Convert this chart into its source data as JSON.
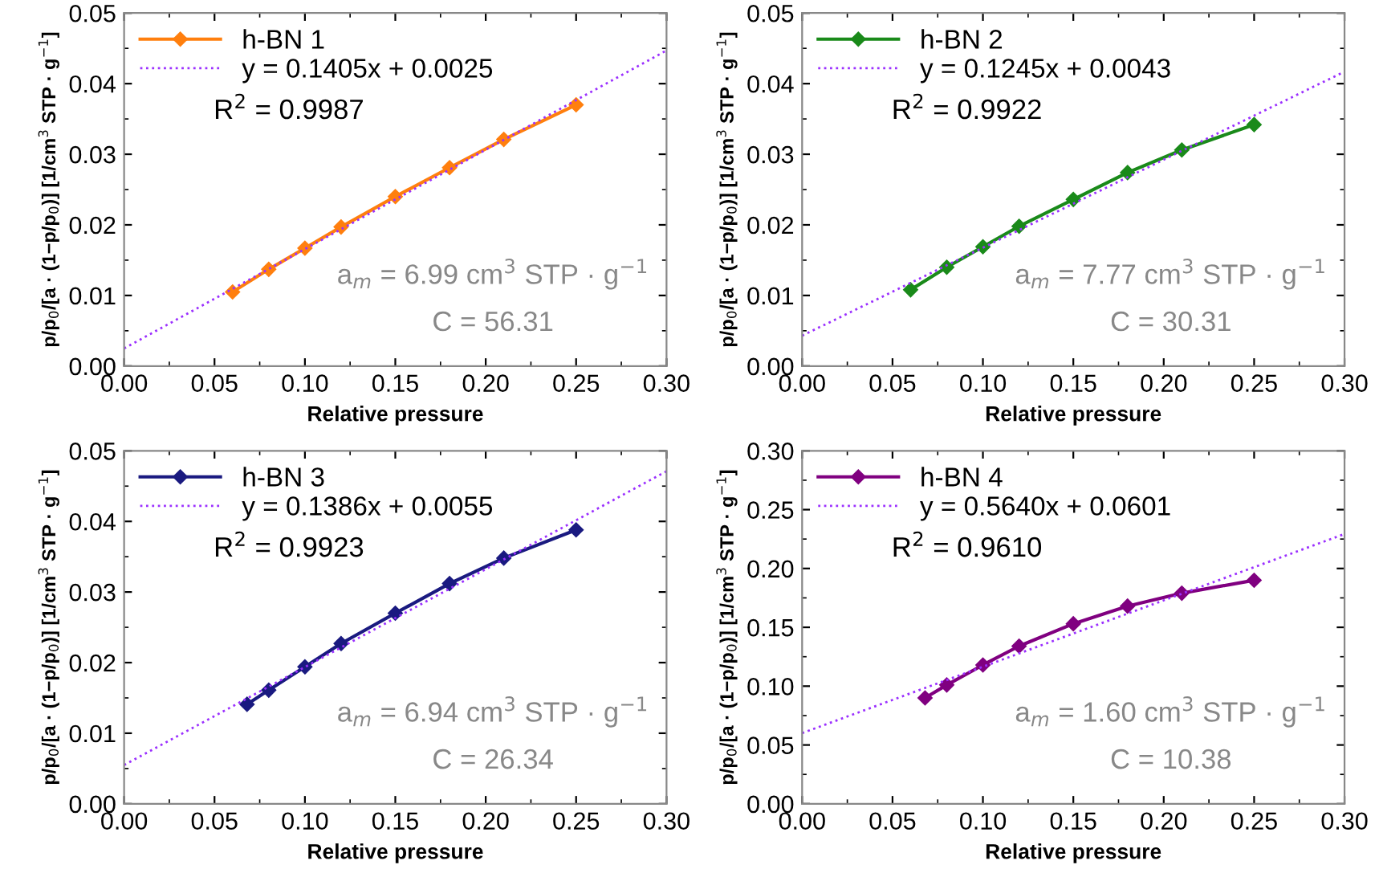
{
  "chart_data": [
    {
      "type": "line",
      "xlabel": "Relative pressure",
      "ylabel": "p/p$_{0}$/[a · (1−p/p$_{0}$)] [1/cm$^{3}$ STP · g$^{−1}$]",
      "xlim": [
        0,
        0.3
      ],
      "ylim": [
        0,
        0.05
      ],
      "xticks": [
        {
          "value": 0,
          "label": "0.00"
        },
        {
          "value": 0.05,
          "label": "0.05"
        },
        {
          "value": 0.1,
          "label": "0.10"
        },
        {
          "value": 0.15,
          "label": "0.15"
        },
        {
          "value": 0.2,
          "label": "0.20"
        },
        {
          "value": 0.25,
          "label": "0.25"
        },
        {
          "value": 0.3,
          "label": "0.30"
        }
      ],
      "yticks": [
        {
          "value": 0,
          "label": "0.00"
        },
        0.01,
        0.02,
        0.03,
        0.04,
        0.05
      ],
      "legend": "top left",
      "grid": false,
      "annotations": [
        "R$^{2}$ = 0.9987",
        "a$_{m}$ = 6.99 cm$^{3}$ STP · g$^{−1}$",
        "C = 56.31"
      ],
      "series": [
        {
          "name": "h-BN 1",
          "color": "#ff7f0e",
          "marker": "diamond",
          "line_style": "solid",
          "x": [
            0.06,
            0.08,
            0.1,
            0.12,
            0.15,
            0.18,
            0.21,
            0.25
          ],
          "values": [
            0.0105,
            0.0137,
            0.0167,
            0.0197,
            0.024,
            0.0281,
            0.0321,
            0.037
          ]
        },
        {
          "name": "y = 0.1405x + 0.0025",
          "color": "#9b30ff",
          "marker": "none",
          "line_style": "dotted",
          "x": [
            0,
            0.3
          ],
          "values": [
            0.0025,
            0.0447
          ]
        }
      ]
    },
    {
      "type": "line",
      "xlabel": "Relative pressure",
      "ylabel": "p/p$_{0}$/[a · (1−p/p$_{0}$)] [1/cm$^{3}$ STP · g$^{−1}$]",
      "xlim": [
        0,
        0.3
      ],
      "ylim": [
        0,
        0.05
      ],
      "xticks": [
        {
          "value": 0,
          "label": "0.00"
        },
        {
          "value": 0.05,
          "label": "0.05"
        },
        {
          "value": 0.1,
          "label": "0.10"
        },
        {
          "value": 0.15,
          "label": "0.15"
        },
        {
          "value": 0.2,
          "label": "0.20"
        },
        {
          "value": 0.25,
          "label": "0.25"
        },
        {
          "value": 0.3,
          "label": "0.30"
        }
      ],
      "yticks": [
        {
          "value": 0,
          "label": "0.00"
        },
        0.01,
        0.02,
        0.03,
        0.04,
        0.05
      ],
      "legend": "top left",
      "grid": false,
      "annotations": [
        "R$^{2}$ = 0.9922",
        "a$_{m}$ = 7.77 cm$^{3}$ STP · g$^{−1}$",
        "C = 30.31"
      ],
      "series": [
        {
          "name": "h-BN 2",
          "color": "#1a8a1a",
          "marker": "diamond",
          "line_style": "solid",
          "x": [
            0.06,
            0.08,
            0.1,
            0.12,
            0.15,
            0.18,
            0.21,
            0.25
          ],
          "values": [
            0.0108,
            0.014,
            0.0169,
            0.0198,
            0.0236,
            0.0274,
            0.0306,
            0.0342
          ]
        },
        {
          "name": "y = 0.1245x + 0.0043",
          "color": "#9b30ff",
          "marker": "none",
          "line_style": "dotted",
          "x": [
            0,
            0.3
          ],
          "values": [
            0.0043,
            0.0417
          ]
        }
      ]
    },
    {
      "type": "line",
      "xlabel": "Relative pressure",
      "ylabel": "p/p$_{0}$/[a · (1−p/p$_{0}$)] [1/cm$^{3}$ STP · g$^{−1}$]",
      "xlim": [
        0,
        0.3
      ],
      "ylim": [
        0,
        0.05
      ],
      "xticks": [
        {
          "value": 0,
          "label": "0.00"
        },
        {
          "value": 0.05,
          "label": "0.05"
        },
        {
          "value": 0.1,
          "label": "0.10"
        },
        {
          "value": 0.15,
          "label": "0.15"
        },
        {
          "value": 0.2,
          "label": "0.20"
        },
        {
          "value": 0.25,
          "label": "0.25"
        },
        {
          "value": 0.3,
          "label": "0.30"
        }
      ],
      "yticks": [
        {
          "value": 0,
          "label": "0.00"
        },
        0.01,
        0.02,
        0.03,
        0.04,
        0.05
      ],
      "legend": "top left",
      "grid": false,
      "annotations": [
        "R$^{2}$ = 0.9923",
        "a$_{m}$ = 6.94 cm$^{3}$ STP · g$^{−1}$",
        "C = 26.34"
      ],
      "series": [
        {
          "name": "h-BN 3",
          "color": "#1a1a80",
          "marker": "diamond",
          "line_style": "solid",
          "x": [
            0.068,
            0.08,
            0.1,
            0.12,
            0.15,
            0.18,
            0.21,
            0.25
          ],
          "values": [
            0.0141,
            0.0161,
            0.0194,
            0.0227,
            0.027,
            0.0312,
            0.0348,
            0.0388
          ]
        },
        {
          "name": "y = 0.1386x + 0.0055",
          "color": "#9b30ff",
          "marker": "none",
          "line_style": "dotted",
          "x": [
            0,
            0.3
          ],
          "values": [
            0.0055,
            0.0471
          ]
        }
      ]
    },
    {
      "type": "line",
      "xlabel": "Relative pressure",
      "ylabel": "p/p$_{0}$/[a · (1−p/p$_{0}$)] [1/cm$^{3}$ STP · g$^{−1}$]",
      "xlim": [
        0,
        0.3
      ],
      "ylim": [
        0,
        0.3
      ],
      "xticks": [
        {
          "value": 0,
          "label": "0.00"
        },
        {
          "value": 0.05,
          "label": "0.05"
        },
        {
          "value": 0.1,
          "label": "0.10"
        },
        {
          "value": 0.15,
          "label": "0.15"
        },
        {
          "value": 0.2,
          "label": "0.20"
        },
        {
          "value": 0.25,
          "label": "0.25"
        },
        {
          "value": 0.3,
          "label": "0.30"
        }
      ],
      "yticks": [
        {
          "value": 0,
          "label": "0.00"
        },
        0.05,
        {
          "value": 0.1,
          "label": "0.10"
        },
        0.15,
        {
          "value": 0.2,
          "label": "0.20"
        },
        0.25,
        {
          "value": 0.3,
          "label": "0.30"
        }
      ],
      "legend": "top left",
      "grid": false,
      "annotations": [
        "R$^{2}$ = 0.9610",
        "a$_{m}$ = 1.60 cm$^{3}$ STP · g$^{−1}$",
        "C = 10.38"
      ],
      "series": [
        {
          "name": "h-BN 4",
          "color": "#800080",
          "marker": "diamond",
          "line_style": "solid",
          "x": [
            0.068,
            0.08,
            0.1,
            0.12,
            0.15,
            0.18,
            0.21,
            0.25
          ],
          "values": [
            0.09,
            0.101,
            0.118,
            0.134,
            0.153,
            0.168,
            0.179,
            0.19
          ]
        },
        {
          "name": "y = 0.5640x + 0.0601",
          "color": "#9b30ff",
          "marker": "none",
          "line_style": "dotted",
          "x": [
            0,
            0.3
          ],
          "values": [
            0.0601,
            0.2293
          ]
        }
      ]
    }
  ]
}
